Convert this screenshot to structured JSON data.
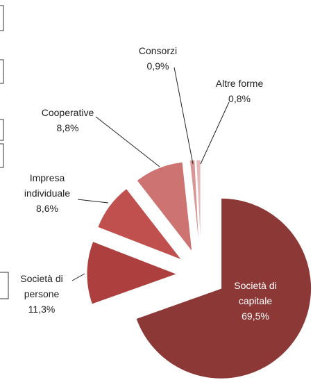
{
  "chart_data": {
    "type": "pie",
    "categories": [
      "Società di capitale",
      "Società di persone",
      "Impresa individuale",
      "Cooperative",
      "Consorzi",
      "Altre forme"
    ],
    "values": [
      69.5,
      11.3,
      8.6,
      8.8,
      0.9,
      0.8
    ],
    "value_labels": [
      "69,5%",
      "11,3%",
      "8,6%",
      "8,8%",
      "0,9%",
      "0,8%"
    ],
    "colors": [
      "#8c3836",
      "#ad403e",
      "#c0504d",
      "#cd7372",
      "#d99694",
      "#e6b9b8"
    ]
  }
}
